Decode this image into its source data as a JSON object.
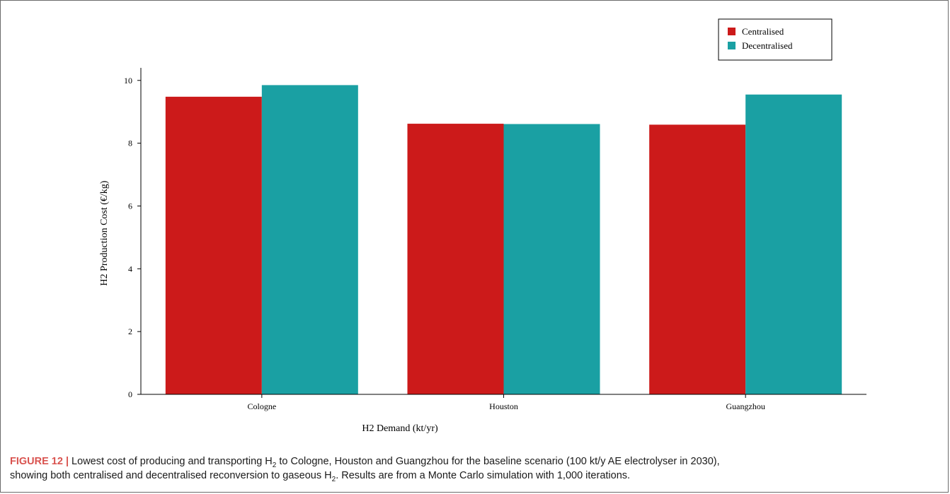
{
  "chart_data": {
    "type": "bar",
    "categories": [
      "Cologne",
      "Houston",
      "Guangzhou"
    ],
    "series": [
      {
        "name": "Centralised",
        "values": [
          9.48,
          8.62,
          8.59
        ],
        "color": "#cc1a1a"
      },
      {
        "name": "Decentralised",
        "values": [
          9.85,
          8.61,
          9.55
        ],
        "color": "#1aa0a3"
      }
    ],
    "xlabel": "H2 Demand (kt/yr)",
    "ylabel": "H2 Production Cost (€/kg)",
    "ylim": [
      0,
      10.4
    ],
    "yticks": [
      0,
      2,
      4,
      6,
      8,
      10
    ],
    "legend": "top-right",
    "grid": false
  },
  "caption": {
    "label": "FIGURE 12 |",
    "line1_part1": " Lowest cost of producing and transporting H",
    "sub1": "2",
    "line1_part2": " to Cologne, Houston and Guangzhou for the baseline scenario (100 kt/y AE electrolyser in 2030),",
    "line2_part1": "showing both centralised and decentralised reconversion to gaseous H",
    "sub2": "2",
    "line2_part2": ". Results are from a Monte Carlo simulation with 1,000 iterations."
  }
}
